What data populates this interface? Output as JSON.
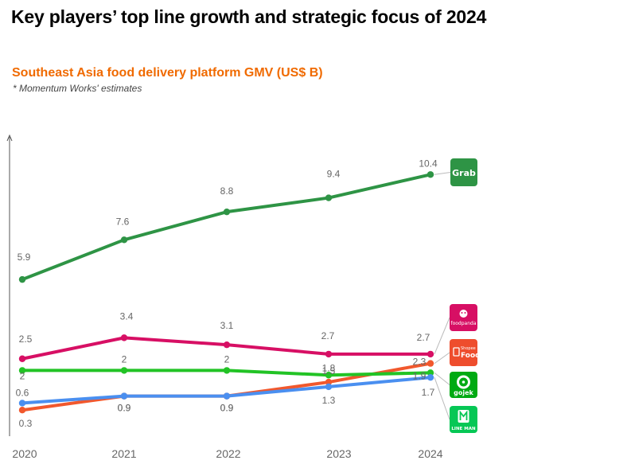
{
  "header": {
    "title": "Key players’ top line growth and strategic focus of 2024"
  },
  "chart": {
    "title": "Southeast Asia food delivery platform GMV (US$ B)",
    "note": "* Momentum Works' estimates"
  },
  "chart_data": {
    "type": "line",
    "title": "Southeast Asia food delivery platform GMV (US$ B)",
    "xlabel": "",
    "ylabel": "",
    "categories": [
      "2020",
      "2021",
      "2022",
      "2023",
      "2024"
    ],
    "ylim": [
      0,
      12
    ],
    "series": [
      {
        "name": "Grab",
        "color": "#2e9445",
        "values": [
          5.9,
          7.6,
          8.8,
          9.4,
          10.4
        ],
        "labels": [
          "5.9",
          "7.6",
          "8.8",
          "9.4",
          "10.4"
        ]
      },
      {
        "name": "foodpanda",
        "color": "#d70f64",
        "values": [
          2.5,
          3.4,
          3.1,
          2.7,
          2.7
        ],
        "labels": [
          "2.5",
          "3.4",
          "3.1",
          "2.7",
          "2.7"
        ]
      },
      {
        "name": "ShopeeFood",
        "color": "#f1582d",
        "values": [
          0.3,
          0.9,
          0.9,
          1.5,
          2.3
        ],
        "labels": [
          "0.3",
          "0.9",
          "0.9",
          "1.5",
          "2.3"
        ]
      },
      {
        "name": "gojek",
        "color": "#22c325",
        "values": [
          2,
          2,
          2,
          1.8,
          1.9
        ],
        "labels": [
          "2",
          "2",
          "2",
          "1.8",
          "1.9"
        ]
      },
      {
        "name": "LINE MAN",
        "color": "#4a8ff0",
        "values": [
          0.6,
          0.9,
          0.9,
          1.3,
          1.7
        ],
        "labels": [
          "0.6",
          "0.9",
          "0.9",
          "1.3",
          "1.7"
        ]
      }
    ]
  },
  "legend_logos": [
    {
      "name": "Grab",
      "text": "Grab",
      "bg": "#2e9445",
      "series_index": 0
    },
    {
      "name": "foodpanda",
      "text": "foodpanda",
      "bg": "#d70f64",
      "series_index": 1
    },
    {
      "name": "ShopeeFood",
      "text": "ShopeeFood",
      "sub": "Shopee",
      "main": "Food",
      "bg": "#ee4d2d",
      "series_index": 2
    },
    {
      "name": "gojek",
      "text": "gojek",
      "bg": "#00aa13",
      "series_index": 3
    },
    {
      "name": "LINE MAN",
      "text": "LINE MAN",
      "bg": "#06c755",
      "series_index": 4
    }
  ]
}
